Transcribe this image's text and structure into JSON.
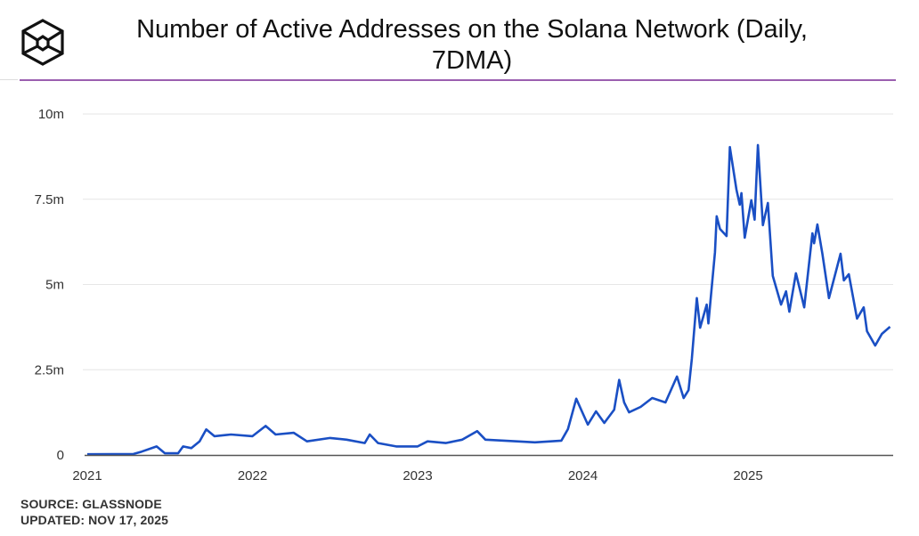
{
  "header": {
    "logo": "The Block logo"
  },
  "footer": {
    "source": "SOURCE: GLASSNODE",
    "updated": "UPDATED: NOV 17, 2025"
  },
  "colors": {
    "line": "#1a4fc4",
    "accent": "#9b5fb0",
    "grid": "#e6e6e6",
    "axis": "#555555"
  },
  "chart_data": {
    "type": "line",
    "title": "Number of Active Addresses on the Solana Network (Daily, 7DMA)",
    "xlabel": "",
    "ylabel": "",
    "xlim": [
      2021.0,
      2025.86
    ],
    "ylim": [
      0,
      10
    ],
    "y_unit": "millions",
    "yticks": [
      {
        "v": 0,
        "label": "0"
      },
      {
        "v": 2.5,
        "label": "2.5m"
      },
      {
        "v": 5,
        "label": "5m"
      },
      {
        "v": 7.5,
        "label": "7.5m"
      },
      {
        "v": 10,
        "label": "10m"
      }
    ],
    "xticks": [
      {
        "v": 2021,
        "label": "2021"
      },
      {
        "v": 2022,
        "label": "2022"
      },
      {
        "v": 2023,
        "label": "2023"
      },
      {
        "v": 2024,
        "label": "2024"
      },
      {
        "v": 2025,
        "label": "2025"
      }
    ],
    "grid": true,
    "legend": "none",
    "series": [
      {
        "name": "Active Addresses (7DMA)",
        "x": [
          2021.0,
          2021.28,
          2021.33,
          2021.42,
          2021.47,
          2021.55,
          2021.58,
          2021.63,
          2021.68,
          2021.72,
          2021.77,
          2021.87,
          2022.0,
          2022.08,
          2022.14,
          2022.25,
          2022.33,
          2022.47,
          2022.57,
          2022.68,
          2022.71,
          2022.76,
          2022.87,
          2023.0,
          2023.06,
          2023.17,
          2023.27,
          2023.36,
          2023.41,
          2023.6,
          2023.71,
          2023.87,
          2023.91,
          2023.96,
          2024.03,
          2024.08,
          2024.13,
          2024.19,
          2024.22,
          2024.25,
          2024.28,
          2024.35,
          2024.42,
          2024.5,
          2024.57,
          2024.61,
          2024.64,
          2024.66,
          2024.69,
          2024.71,
          2024.75,
          2024.76,
          2024.8,
          2024.81,
          2024.83,
          2024.87,
          2024.89,
          2024.93,
          2024.95,
          2024.96,
          2024.98,
          2025.02,
          2025.04,
          2025.06,
          2025.09,
          2025.12,
          2025.15,
          2025.2,
          2025.23,
          2025.25,
          2025.29,
          2025.34,
          2025.39,
          2025.4,
          2025.42,
          2025.45,
          2025.49,
          2025.56,
          2025.58,
          2025.61,
          2025.66,
          2025.7,
          2025.72,
          2025.77,
          2025.81,
          2025.86
        ],
        "y": [
          0.02,
          0.03,
          0.1,
          0.25,
          0.05,
          0.05,
          0.25,
          0.2,
          0.4,
          0.75,
          0.55,
          0.6,
          0.55,
          0.85,
          0.6,
          0.65,
          0.4,
          0.5,
          0.45,
          0.35,
          0.6,
          0.35,
          0.25,
          0.25,
          0.4,
          0.35,
          0.45,
          0.7,
          0.45,
          0.4,
          0.37,
          0.42,
          0.76,
          1.65,
          0.89,
          1.28,
          0.94,
          1.33,
          2.2,
          1.54,
          1.25,
          1.41,
          1.67,
          1.54,
          2.3,
          1.67,
          1.9,
          2.82,
          4.6,
          3.73,
          4.41,
          3.86,
          5.95,
          7.0,
          6.63,
          6.42,
          9.03,
          7.78,
          7.34,
          7.68,
          6.37,
          7.47,
          6.9,
          9.09,
          6.74,
          7.39,
          5.25,
          4.41,
          4.8,
          4.2,
          5.33,
          4.33,
          6.5,
          6.21,
          6.76,
          5.9,
          4.6,
          5.9,
          5.12,
          5.3,
          4.0,
          4.33,
          3.63,
          3.21,
          3.55,
          3.76
        ]
      }
    ]
  }
}
